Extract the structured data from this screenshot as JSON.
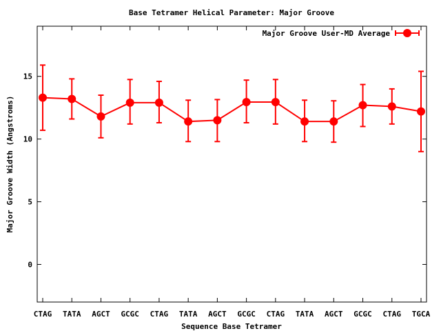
{
  "chart_data": {
    "type": "line",
    "title": "Base Tetramer Helical Parameter: Major Groove",
    "xlabel": "Sequence Base Tetramer",
    "ylabel": "Major Groove Width (Angstroms)",
    "categories": [
      "CTAG",
      "TATA",
      "AGCT",
      "GCGC",
      "CTAG",
      "TATA",
      "AGCT",
      "GCGC",
      "CTAG",
      "TATA",
      "AGCT",
      "GCGC",
      "CTAG",
      "TGCA"
    ],
    "ylim": [
      -3,
      19
    ],
    "yticks": [
      0,
      5,
      10,
      15
    ],
    "grid": false,
    "legend_position": "top-right",
    "series": [
      {
        "name": "Major Groove User-MD Average",
        "color": "#ff0000",
        "marker": "circle",
        "error_bars": true,
        "values": [
          13.3,
          13.2,
          11.8,
          12.9,
          12.9,
          11.4,
          11.5,
          12.95,
          12.95,
          11.4,
          11.4,
          12.7,
          12.6,
          12.2
        ],
        "error_low": [
          10.7,
          11.6,
          10.1,
          11.2,
          11.3,
          9.8,
          9.8,
          11.3,
          11.2,
          9.8,
          9.75,
          11.0,
          11.2,
          9.0
        ],
        "error_high": [
          15.9,
          14.8,
          13.5,
          14.75,
          14.6,
          13.1,
          13.15,
          14.7,
          14.75,
          13.1,
          13.05,
          14.35,
          14.0,
          15.4
        ]
      }
    ]
  }
}
